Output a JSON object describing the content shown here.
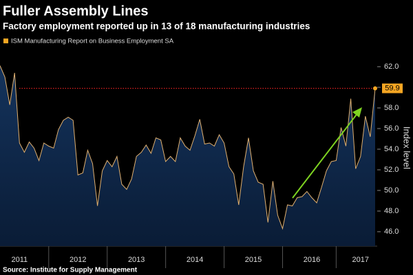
{
  "chart_data": {
    "type": "area",
    "title": "Fuller Assembly Lines",
    "subtitle": "Factory employment reported up in 13 of 18 manufacturing industries",
    "y_label": "Index level",
    "source": "Source: Institute for Supply Management",
    "categories": [
      null,
      null,
      null,
      null,
      "2011",
      null,
      null,
      null,
      null,
      null,
      null,
      null,
      null,
      null,
      null,
      null,
      "2012",
      null,
      null,
      null,
      null,
      null,
      null,
      null,
      null,
      null,
      null,
      null,
      "2013",
      null,
      null,
      null,
      null,
      null,
      null,
      null,
      null,
      null,
      null,
      null,
      "2014",
      null,
      null,
      null,
      null,
      null,
      null,
      null,
      null,
      null,
      null,
      null,
      "2015",
      null,
      null,
      null,
      null,
      null,
      null,
      null,
      null,
      null,
      null,
      null,
      "2016",
      null,
      null,
      null,
      null,
      null,
      null,
      null,
      null,
      null,
      "2017",
      null,
      null,
      null
    ],
    "series": [
      {
        "name": "ISM Manufacturing Report on Business Employment SA",
        "color": "#f5a623",
        "line_color": "#e0b070",
        "fill": "#0f2a4d",
        "values": [
          62.1,
          61,
          58.3,
          61.4,
          54.6,
          53.7,
          54.7,
          54.1,
          52.9,
          54.6,
          54.3,
          54.1,
          55.9,
          56.8,
          57.1,
          56.8,
          51.5,
          51.7,
          53.9,
          52.6,
          48.5,
          51.9,
          52.9,
          52.3,
          53.3,
          50.6,
          50.1,
          51.1,
          53.3,
          53.7,
          54.4,
          53.6,
          55.1,
          54.9,
          52.8,
          53.3,
          52.8,
          55.1,
          54.3,
          53.9,
          55.3,
          56.9,
          54.5,
          54.6,
          54.3,
          55.4,
          54.6,
          52.3,
          51.6,
          48.6,
          52.3,
          55.1,
          51.9,
          50.8,
          50.6,
          46.9,
          50.9,
          47.6,
          46.3,
          48.6,
          48.5,
          49.3,
          49.4,
          49.9,
          49.3,
          48.8,
          50.3,
          51.9,
          52.8,
          52.9,
          56.1,
          54.3,
          58.9,
          52.1,
          53.3,
          57.2,
          55.2,
          59.9
        ]
      }
    ],
    "ylim": [
      44.6,
      63.8
    ],
    "yticks": [
      {
        "value": 46,
        "label": "46.0"
      },
      {
        "value": 48,
        "label": "48.0"
      },
      {
        "value": 50,
        "label": "50.0"
      },
      {
        "value": 52,
        "label": "52.0"
      },
      {
        "value": 54,
        "label": "54.0"
      },
      {
        "value": 56,
        "label": "56.0"
      },
      {
        "value": 58,
        "label": "58.0"
      },
      {
        "value": 60,
        "label": "60.0"
      },
      {
        "value": 62,
        "label": "62.0"
      }
    ],
    "grid": false
  }
}
